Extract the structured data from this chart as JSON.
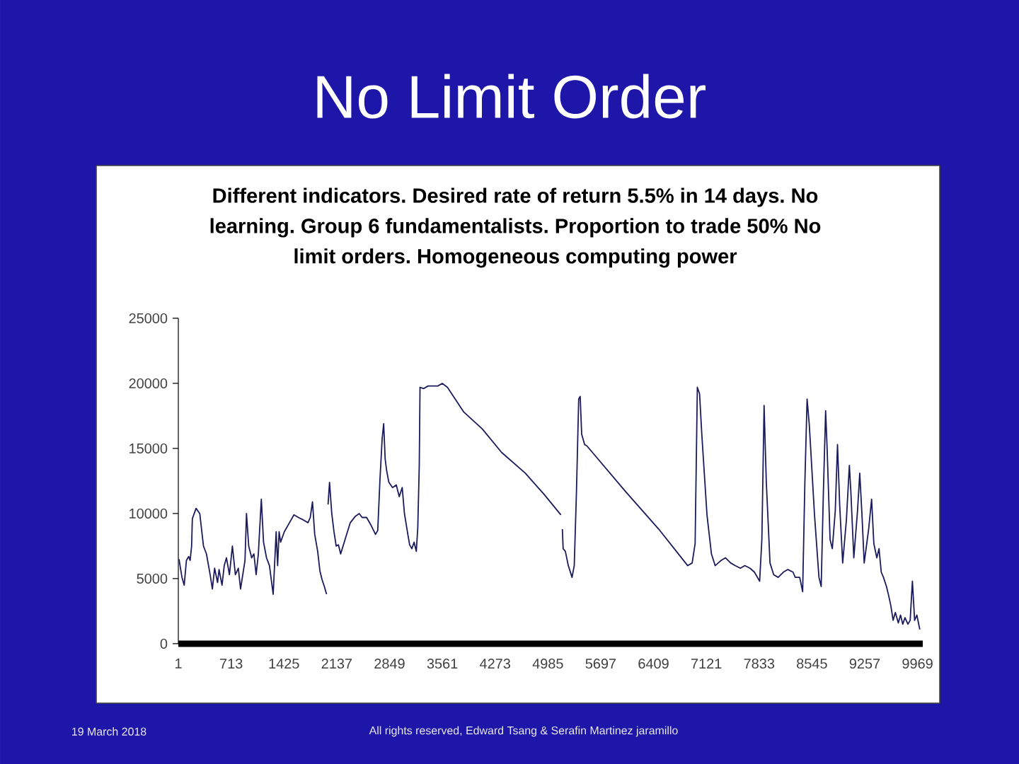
{
  "chart_data": {
    "type": "line",
    "title": "No Limit Order",
    "subtitle": "Different indicators. Desired rate of return 5.5% in 14 days. No learning. Group 6 fundamentalists. Proportion to trade 50% No limit orders. Homogeneous computing power",
    "annotations": [
      "19 March 2018",
      "All rights reserved, Edward Tsang & Serafin Martinez jaramillo"
    ],
    "color": "#1b1b5c",
    "xlim": [
      1,
      10040
    ],
    "xticks": [
      1,
      713,
      1425,
      2137,
      2849,
      3561,
      4273,
      4985,
      5697,
      6409,
      7121,
      7833,
      8545,
      9257,
      9969
    ],
    "ylim": [
      0,
      25000
    ],
    "yticks": [
      0,
      5000,
      10000,
      15000,
      20000,
      25000
    ],
    "x": [
      10,
      50,
      80,
      110,
      140,
      160,
      180,
      190,
      240,
      290,
      340,
      380,
      430,
      460,
      490,
      530,
      550,
      590,
      620,
      650,
      690,
      730,
      770,
      810,
      840,
      870,
      900,
      920,
      950,
      990,
      1020,
      1050,
      1080,
      1120,
      1150,
      1190,
      1230,
      1280,
      1320,
      1340,
      1360,
      1380,
      1430,
      1500,
      1560,
      1620,
      1690,
      1750,
      1780,
      1810,
      1840,
      1880,
      1910,
      1940,
      1970,
      2000,
      2010,
      2020,
      2040,
      2070,
      2100,
      2130,
      2160,
      2190,
      2260,
      2320,
      2390,
      2440,
      2480,
      2540,
      2600,
      2660,
      2690,
      2720,
      2750,
      2770,
      2790,
      2810,
      2840,
      2890,
      2940,
      2980,
      3020,
      3050,
      3090,
      3120,
      3150,
      3180,
      3210,
      3230,
      3250,
      3260,
      3310,
      3370,
      3430,
      3500,
      3560,
      3630,
      3850,
      4100,
      4360,
      4680,
      4930,
      5160,
      5170,
      5180,
      5190,
      5220,
      5260,
      5310,
      5340,
      5370,
      5400,
      5420,
      5440,
      5480,
      5510,
      6030,
      6480,
      6870,
      6930,
      6970,
      7000,
      7030,
      7060,
      7130,
      7190,
      7240,
      7320,
      7380,
      7450,
      7510,
      7580,
      7640,
      7710,
      7770,
      7840,
      7870,
      7900,
      7930,
      7980,
      8030,
      8090,
      8160,
      8220,
      8290,
      8320,
      8380,
      8420,
      8450,
      8480,
      8510,
      8580,
      8640,
      8670,
      8700,
      8730,
      8750,
      8790,
      8820,
      8860,
      8890,
      8920,
      8960,
      9010,
      9050,
      9070,
      9110,
      9160,
      9190,
      9220,
      9250,
      9310,
      9350,
      9380,
      9420,
      9450,
      9480,
      9510,
      9550,
      9580,
      9610,
      9640,
      9670,
      9710,
      9740,
      9770,
      9800,
      9840,
      9870,
      9900,
      9930,
      9960,
      10000
    ],
    "values": [
      6500,
      5100,
      4500,
      6400,
      6700,
      6400,
      7500,
      9600,
      10400,
      10000,
      7500,
      6900,
      5300,
      4200,
      5800,
      4700,
      5700,
      4500,
      6000,
      6600,
      5300,
      7500,
      5300,
      5800,
      4200,
      5300,
      6400,
      10000,
      7500,
      6600,
      6900,
      5300,
      6900,
      11100,
      7800,
      6600,
      6000,
      3800,
      8600,
      6000,
      8600,
      7800,
      8600,
      9300,
      9900,
      9700,
      9500,
      9300,
      9700,
      10900,
      8400,
      7100,
      5600,
      4900,
      4400,
      3800,
      null,
      10700,
      12400,
      10000,
      8600,
      7500,
      7600,
      6900,
      8200,
      9300,
      9800,
      10000,
      9700,
      9700,
      9100,
      8400,
      8700,
      12600,
      15800,
      16900,
      14200,
      13300,
      12400,
      12000,
      12200,
      11300,
      12000,
      10000,
      8600,
      7600,
      7300,
      7800,
      7100,
      8900,
      13700,
      19700,
      19600,
      19800,
      19800,
      19800,
      20000,
      19700,
      17800,
      16500,
      14700,
      13100,
      11500,
      9900,
      null,
      8800,
      7300,
      7100,
      6000,
      5100,
      6000,
      11700,
      18800,
      19000,
      16100,
      15300,
      15200,
      11700,
      8800,
      6000,
      6200,
      7700,
      19700,
      19200,
      16100,
      9900,
      6900,
      6000,
      6400,
      6600,
      6200,
      6000,
      5800,
      6000,
      5800,
      5500,
      4800,
      8000,
      18300,
      12400,
      6200,
      5300,
      5100,
      5500,
      5700,
      5500,
      5100,
      5100,
      4000,
      12400,
      18800,
      16800,
      9900,
      5100,
      4400,
      11700,
      17900,
      15000,
      8000,
      7300,
      10200,
      15300,
      10600,
      6200,
      9500,
      13700,
      11700,
      6600,
      10200,
      13100,
      9900,
      6200,
      8800,
      11100,
      7700,
      6600,
      7300,
      5500,
      5100,
      4400,
      3700,
      2900,
      1800,
      2400,
      1600,
      2200,
      1500,
      2000,
      1500,
      1800,
      4800,
      1800,
      2200,
      1100
    ]
  }
}
